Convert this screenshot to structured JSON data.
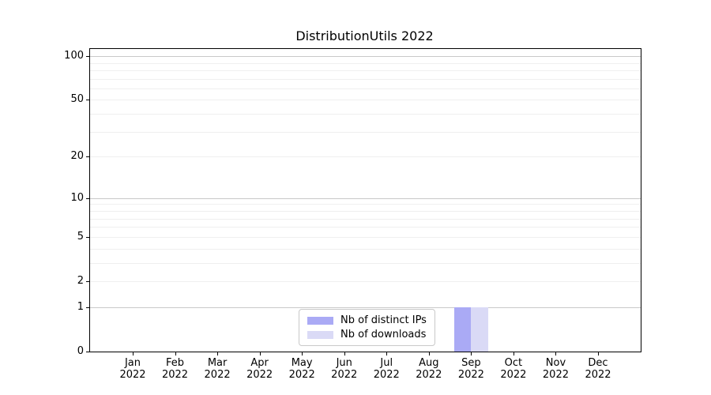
{
  "figure": {
    "background": "#ffffff",
    "text_color": "#000000",
    "spine_color": "#000000"
  },
  "chart_data": {
    "type": "bar",
    "title": "DistributionUtils 2022",
    "categories": [
      "Jan 2022",
      "Feb 2022",
      "Mar 2022",
      "Apr 2022",
      "May 2022",
      "Jun 2022",
      "Jul 2022",
      "Aug 2022",
      "Sep 2022",
      "Oct 2022",
      "Nov 2022",
      "Dec 2022"
    ],
    "series": [
      {
        "name": "Nb of distinct IPs",
        "color": "#aaaaf5",
        "values": [
          0,
          0,
          0,
          0,
          0,
          0,
          0,
          0,
          1,
          0,
          0,
          0
        ]
      },
      {
        "name": "Nb of downloads",
        "color": "#dadaf6",
        "values": [
          0,
          0,
          0,
          0,
          0,
          0,
          0,
          0,
          1,
          0,
          0,
          0
        ]
      }
    ],
    "xlabel": "",
    "ylabel": "",
    "y_scale": "log1p",
    "ylim": [
      0,
      112
    ],
    "y_ticks": [
      0,
      1,
      2,
      5,
      10,
      20,
      50,
      100
    ],
    "y_major_gridlines": [
      1,
      10,
      100
    ],
    "y_light_gridlines": [
      2,
      5,
      20,
      50
    ],
    "y_minor_gridlines": [
      3,
      4,
      6,
      7,
      8,
      9,
      30,
      40,
      60,
      70,
      80,
      90
    ],
    "grid": {
      "major_color": "#c9c9c9",
      "minor_color": "#efefef",
      "on": true
    },
    "legend": {
      "position": "inside-lower-center",
      "entries": [
        "Nb of distinct IPs",
        "Nb of downloads"
      ]
    }
  }
}
